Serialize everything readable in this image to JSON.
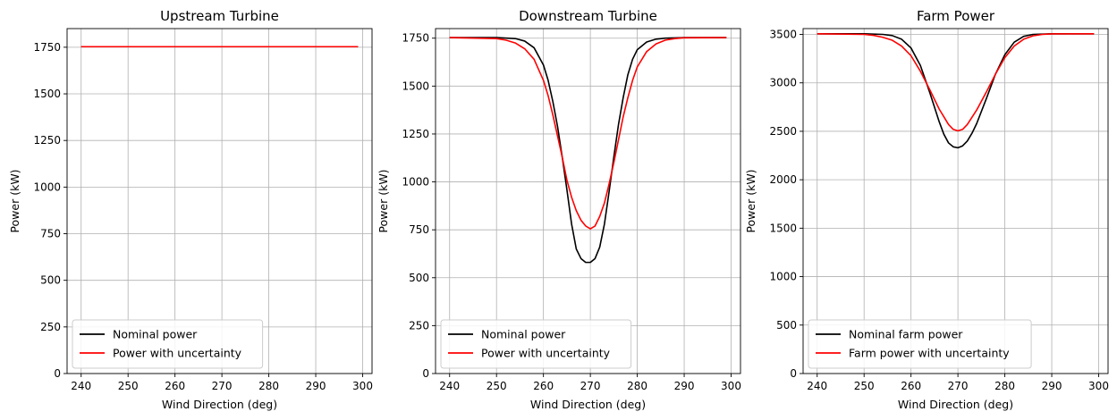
{
  "chart_data": [
    {
      "type": "line",
      "title": "Upstream Turbine",
      "xlabel": "Wind Direction (deg)",
      "ylabel": "Power (kW)",
      "xlim": [
        237,
        302
      ],
      "ylim": [
        0,
        1850
      ],
      "xticks": [
        240,
        250,
        260,
        270,
        280,
        290,
        300
      ],
      "yticks": [
        0,
        250,
        500,
        750,
        1000,
        1250,
        1500,
        1750
      ],
      "grid": true,
      "legend_position": "lower-left",
      "series": [
        {
          "name": "Nominal power",
          "color": "#000000",
          "x": [
            240,
            250,
            260,
            270,
            280,
            290,
            299
          ],
          "y": [
            1753,
            1753,
            1753,
            1753,
            1753,
            1753,
            1753
          ]
        },
        {
          "name": "Power with uncertainty",
          "color": "#ff0000",
          "x": [
            240,
            250,
            260,
            270,
            280,
            290,
            299
          ],
          "y": [
            1753,
            1753,
            1753,
            1753,
            1753,
            1753,
            1753
          ]
        }
      ]
    },
    {
      "type": "line",
      "title": "Downstream Turbine",
      "xlabel": "Wind Direction (deg)",
      "ylabel": "Power (kW)",
      "xlim": [
        237,
        302
      ],
      "ylim": [
        0,
        1800
      ],
      "xticks": [
        240,
        250,
        260,
        270,
        280,
        290,
        300
      ],
      "yticks": [
        0,
        250,
        500,
        750,
        1000,
        1250,
        1500,
        1750
      ],
      "grid": true,
      "legend_position": "lower-left",
      "series": [
        {
          "name": "Nominal power",
          "color": "#000000",
          "x": [
            240,
            250,
            254,
            256,
            258,
            260,
            261,
            262,
            263,
            264,
            265,
            266,
            267,
            268,
            269,
            270,
            271,
            272,
            273,
            274,
            275,
            276,
            277,
            278,
            279,
            280,
            282,
            284,
            286,
            290,
            299
          ],
          "y": [
            1753,
            1753,
            1748,
            1735,
            1700,
            1610,
            1530,
            1420,
            1290,
            1130,
            960,
            780,
            650,
            600,
            580,
            580,
            600,
            660,
            780,
            950,
            1130,
            1300,
            1440,
            1560,
            1640,
            1690,
            1730,
            1745,
            1750,
            1753,
            1753
          ]
        },
        {
          "name": "Power with uncertainty",
          "color": "#ff0000",
          "x": [
            240,
            250,
            252,
            254,
            256,
            258,
            260,
            261,
            262,
            263,
            264,
            265,
            266,
            267,
            268,
            269,
            270,
            271,
            272,
            273,
            274,
            275,
            276,
            277,
            278,
            279,
            280,
            282,
            284,
            286,
            288,
            290,
            299
          ],
          "y": [
            1753,
            1748,
            1740,
            1725,
            1695,
            1640,
            1530,
            1450,
            1350,
            1240,
            1130,
            1010,
            920,
            850,
            800,
            770,
            755,
            770,
            820,
            890,
            990,
            1100,
            1220,
            1340,
            1440,
            1530,
            1600,
            1680,
            1720,
            1740,
            1748,
            1752,
            1753
          ]
        }
      ]
    },
    {
      "type": "line",
      "title": "Farm Power",
      "xlabel": "Wind Direction (deg)",
      "ylabel": "Power (kW)",
      "xlim": [
        237,
        302
      ],
      "ylim": [
        0,
        3560
      ],
      "xticks": [
        240,
        250,
        260,
        270,
        280,
        290,
        300
      ],
      "yticks": [
        0,
        500,
        1000,
        1500,
        2000,
        2500,
        3000,
        3500
      ],
      "grid": true,
      "legend_position": "lower-left",
      "series": [
        {
          "name": "Nominal farm power",
          "color": "#000000",
          "x": [
            240,
            250,
            254,
            256,
            258,
            260,
            262,
            264,
            266,
            267,
            268,
            269,
            270,
            271,
            272,
            273,
            274,
            276,
            278,
            280,
            282,
            284,
            286,
            290,
            299
          ],
          "y": [
            3506,
            3506,
            3500,
            3488,
            3450,
            3360,
            3180,
            2900,
            2600,
            2470,
            2380,
            2340,
            2330,
            2350,
            2400,
            2480,
            2580,
            2830,
            3090,
            3290,
            3420,
            3480,
            3500,
            3506,
            3506
          ]
        },
        {
          "name": "Farm power with uncertainty",
          "color": "#ff0000",
          "x": [
            240,
            250,
            252,
            254,
            256,
            258,
            260,
            262,
            264,
            266,
            268,
            269,
            270,
            271,
            272,
            274,
            276,
            278,
            280,
            282,
            284,
            286,
            288,
            290,
            299
          ],
          "y": [
            3506,
            3500,
            3490,
            3470,
            3440,
            3380,
            3280,
            3120,
            2930,
            2730,
            2570,
            2520,
            2505,
            2520,
            2570,
            2720,
            2900,
            3090,
            3260,
            3380,
            3450,
            3485,
            3500,
            3505,
            3506
          ]
        }
      ]
    }
  ]
}
